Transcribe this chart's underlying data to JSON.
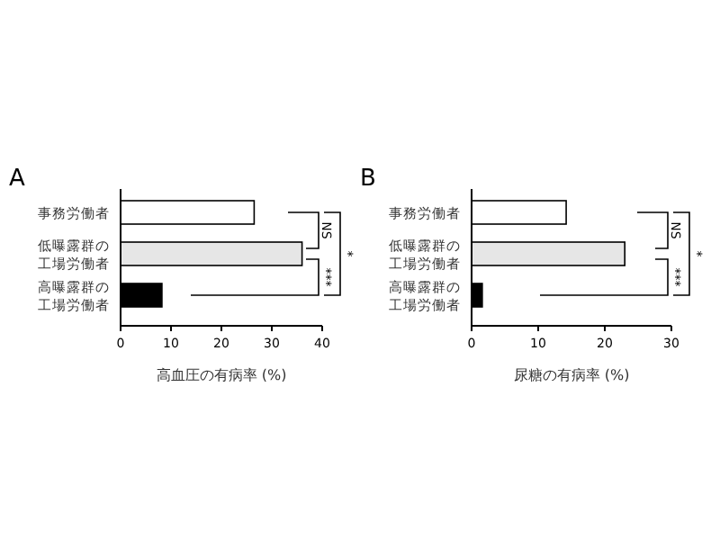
{
  "chart_data": [
    {
      "type": "bar",
      "orientation": "horizontal",
      "title": "A",
      "xlabel": "高血圧の有病率 (%)",
      "categories": [
        "事務労働者",
        "低曝露群の工場労働者",
        "高曝露群の工場労働者"
      ],
      "values": [
        26.5,
        36,
        8.2
      ],
      "colors": [
        "#ffffff",
        "#e6e6e6",
        "#000000"
      ],
      "xlim": [
        0,
        40
      ],
      "xticks": [
        0,
        10,
        20,
        30,
        40
      ],
      "grid": false,
      "annotations": [
        "NS",
        "***",
        "*"
      ]
    },
    {
      "type": "bar",
      "orientation": "horizontal",
      "title": "B",
      "xlabel": "尿糖の有病率 (%)",
      "categories": [
        "事務労働者",
        "低曝露群の工場労働者",
        "高曝露群の工場労働者"
      ],
      "values": [
        14.2,
        23,
        1.6
      ],
      "colors": [
        "#ffffff",
        "#e6e6e6",
        "#000000"
      ],
      "xlim": [
        0,
        30
      ],
      "xticks": [
        0,
        10,
        20,
        30
      ],
      "grid": false,
      "annotations": [
        "NS",
        "***",
        "*"
      ]
    }
  ]
}
